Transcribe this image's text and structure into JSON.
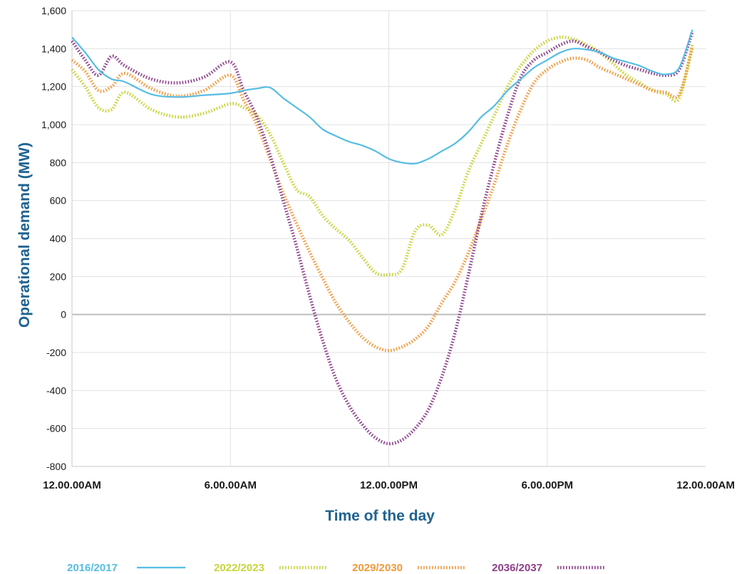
{
  "chart_data": {
    "type": "line",
    "title": "",
    "xlabel": "Time of the day",
    "ylabel": "Operational demand (MW)",
    "ylim": [
      -800,
      1600
    ],
    "yticks": [
      -800,
      -600,
      -400,
      -200,
      0,
      200,
      400,
      600,
      800,
      1000,
      1200,
      1400,
      1600
    ],
    "ytick_labels": [
      "-800",
      "-600",
      "-400",
      "-200",
      "0",
      "200",
      "400",
      "600",
      "800",
      "1,000",
      "1,200",
      "1,400",
      "1,600"
    ],
    "xlim": [
      0,
      24
    ],
    "xticks": [
      0,
      6,
      12,
      18,
      24
    ],
    "xtick_labels": [
      "12.00.00AM",
      "6.00.00AM",
      "12.00.00PM",
      "6.00.00PM",
      "12.00.00AM"
    ],
    "grid": true,
    "legend_position": "bottom",
    "series": [
      {
        "name": "2016/2017",
        "color": "#56bde3",
        "style": "solid",
        "x": [
          0,
          0.5,
          1,
          1.5,
          2,
          3,
          4,
          5,
          6,
          6.5,
          7,
          7.5,
          8,
          8.5,
          9,
          9.5,
          10,
          10.5,
          11,
          11.5,
          12,
          12.5,
          13,
          13.5,
          14,
          14.5,
          15,
          15.5,
          16,
          16.5,
          17,
          17.5,
          18,
          18.5,
          19,
          19.5,
          20,
          20.5,
          21,
          21.5,
          22,
          22.5,
          23,
          23.5
        ],
        "values": [
          1460,
          1380,
          1290,
          1240,
          1225,
          1160,
          1145,
          1155,
          1165,
          1180,
          1190,
          1195,
          1140,
          1090,
          1040,
          975,
          940,
          910,
          890,
          860,
          820,
          800,
          795,
          820,
          860,
          900,
          960,
          1040,
          1100,
          1180,
          1240,
          1300,
          1340,
          1380,
          1400,
          1395,
          1380,
          1350,
          1330,
          1310,
          1280,
          1265,
          1300,
          1500
        ]
      },
      {
        "name": "2022/2023",
        "color": "#c8d43c",
        "style": "dotted",
        "x": [
          0,
          0.5,
          1,
          1.5,
          2,
          3,
          4,
          5,
          6,
          6.5,
          7,
          7.5,
          8,
          8.5,
          9,
          9.5,
          10,
          10.5,
          11,
          11.5,
          12,
          12.5,
          13,
          13.5,
          14,
          14.5,
          15,
          15.5,
          16,
          16.5,
          17,
          17.5,
          18,
          18.5,
          19,
          19.5,
          20,
          20.5,
          21,
          21.5,
          22,
          22.5,
          23,
          23.5
        ],
        "values": [
          1290,
          1200,
          1090,
          1080,
          1170,
          1080,
          1040,
          1060,
          1110,
          1090,
          1050,
          950,
          800,
          660,
          620,
          520,
          450,
          390,
          300,
          220,
          210,
          240,
          440,
          470,
          420,
          550,
          750,
          900,
          1050,
          1200,
          1310,
          1390,
          1440,
          1460,
          1450,
          1420,
          1380,
          1320,
          1260,
          1220,
          1180,
          1160,
          1140,
          1420
        ]
      },
      {
        "name": "2029/2030",
        "color": "#f09a3e",
        "style": "dotted",
        "x": [
          0,
          0.5,
          1,
          1.5,
          2,
          3,
          4,
          5,
          6,
          6.5,
          7,
          7.5,
          8,
          8.5,
          9,
          9.5,
          10,
          10.5,
          11,
          11.5,
          12,
          12.5,
          13,
          13.5,
          14,
          14.5,
          15,
          15.5,
          16,
          16.5,
          17,
          17.5,
          18,
          18.5,
          19,
          19.5,
          20,
          20.5,
          21,
          21.5,
          22,
          22.5,
          23,
          23.5
        ],
        "values": [
          1340,
          1280,
          1180,
          1200,
          1270,
          1190,
          1150,
          1180,
          1260,
          1130,
          1000,
          820,
          640,
          480,
          330,
          190,
          60,
          -40,
          -120,
          -170,
          -190,
          -170,
          -130,
          -60,
          60,
          170,
          320,
          500,
          690,
          900,
          1080,
          1220,
          1290,
          1330,
          1350,
          1340,
          1300,
          1270,
          1240,
          1210,
          1180,
          1170,
          1160,
          1410
        ]
      },
      {
        "name": "2036/2037",
        "color": "#8c3f8a",
        "style": "dotted",
        "x": [
          0,
          0.5,
          1,
          1.5,
          2,
          3,
          4,
          5,
          6,
          6.5,
          7,
          7.5,
          8,
          8.5,
          9,
          9.5,
          10,
          10.5,
          11,
          11.5,
          12,
          12.5,
          13,
          13.5,
          14,
          14.5,
          15,
          15.5,
          16,
          16.5,
          17,
          17.5,
          18,
          18.5,
          19,
          19.5,
          20,
          20.5,
          21,
          21.5,
          22,
          22.5,
          23,
          23.5
        ],
        "values": [
          1440,
          1340,
          1260,
          1360,
          1310,
          1240,
          1220,
          1250,
          1330,
          1180,
          1040,
          840,
          600,
          360,
          100,
          -140,
          -340,
          -480,
          -580,
          -650,
          -680,
          -660,
          -600,
          -500,
          -330,
          -100,
          200,
          520,
          800,
          1050,
          1250,
          1340,
          1380,
          1420,
          1440,
          1410,
          1380,
          1340,
          1310,
          1290,
          1270,
          1260,
          1290,
          1490
        ]
      }
    ]
  }
}
